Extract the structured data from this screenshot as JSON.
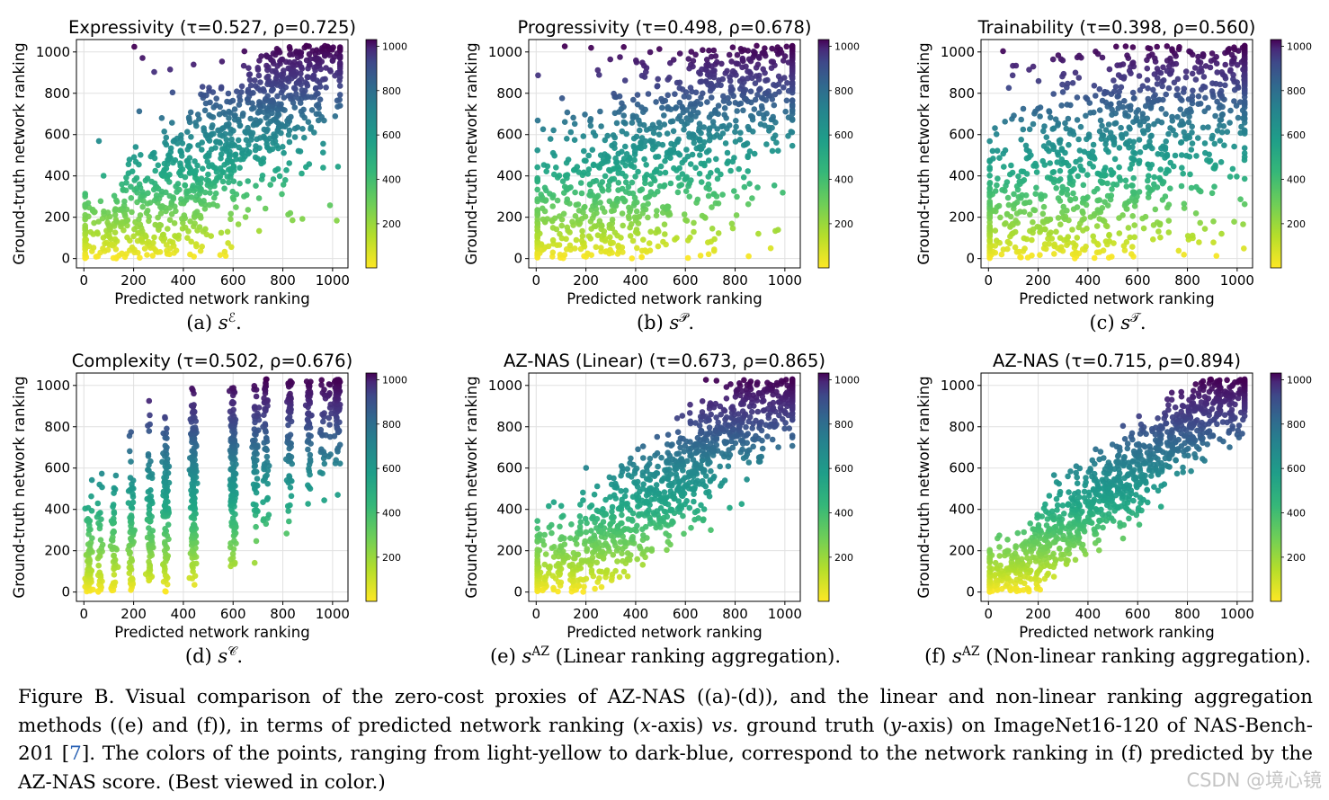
{
  "chart_data": [
    {
      "id": "a",
      "type": "scatter",
      "title": "Expressivity (τ=0.527, ρ=0.725)",
      "xlabel": "Predicted network ranking",
      "ylabel": "Ground-truth network ranking",
      "xlim": [
        -30,
        1062
      ],
      "ylim": [
        -45,
        1060
      ],
      "xticks": [
        0,
        200,
        400,
        600,
        800,
        1000
      ],
      "yticks": [
        0,
        200,
        400,
        600,
        800,
        1000
      ],
      "colorbar": {
        "ticks": [
          200,
          400,
          600,
          800,
          1000
        ],
        "range": [
          1,
          1030
        ],
        "colormap": "viridis_r"
      },
      "grid": true,
      "n_points": 1030,
      "tau": 0.527,
      "rho": 0.725,
      "subcaption": "(a) s^E."
    },
    {
      "id": "b",
      "type": "scatter",
      "title": "Progressivity (τ=0.498, ρ=0.678)",
      "xlabel": "Predicted network ranking",
      "ylabel": "Ground-truth network ranking",
      "xlim": [
        -30,
        1062
      ],
      "ylim": [
        -45,
        1060
      ],
      "xticks": [
        0,
        200,
        400,
        600,
        800,
        1000
      ],
      "yticks": [
        0,
        200,
        400,
        600,
        800,
        1000
      ],
      "colorbar": {
        "ticks": [
          200,
          400,
          600,
          800,
          1000
        ],
        "range": [
          1,
          1030
        ],
        "colormap": "viridis_r"
      },
      "grid": true,
      "n_points": 1030,
      "tau": 0.498,
      "rho": 0.678,
      "subcaption": "(b) s^P."
    },
    {
      "id": "c",
      "type": "scatter",
      "title": "Trainability (τ=0.398, ρ=0.560)",
      "xlabel": "Predicted network ranking",
      "ylabel": "Ground-truth network ranking",
      "xlim": [
        -30,
        1062
      ],
      "ylim": [
        -45,
        1060
      ],
      "xticks": [
        0,
        200,
        400,
        600,
        800,
        1000
      ],
      "yticks": [
        0,
        200,
        400,
        600,
        800,
        1000
      ],
      "colorbar": {
        "ticks": [
          200,
          400,
          600,
          800,
          1000
        ],
        "range": [
          1,
          1030
        ],
        "colormap": "viridis_r"
      },
      "grid": true,
      "n_points": 1030,
      "tau": 0.398,
      "rho": 0.56,
      "subcaption": "(c) s^T."
    },
    {
      "id": "d",
      "type": "scatter",
      "title": "Complexity (τ=0.502, ρ=0.676)",
      "xlabel": "Predicted network ranking",
      "ylabel": "Ground-truth network ranking",
      "xlim": [
        -30,
        1062
      ],
      "ylim": [
        -45,
        1060
      ],
      "xticks": [
        0,
        200,
        400,
        600,
        800,
        1000
      ],
      "yticks": [
        0,
        200,
        400,
        600,
        800,
        1000
      ],
      "colorbar": {
        "ticks": [
          200,
          400,
          600,
          800,
          1000
        ],
        "range": [
          1,
          1030
        ],
        "colormap": "viridis_r"
      },
      "grid": true,
      "n_points": 1030,
      "tau": 0.502,
      "rho": 0.676,
      "x_clusters": [
        20,
        65,
        120,
        190,
        265,
        330,
        440,
        600,
        690,
        730,
        825,
        905,
        960,
        990,
        1020
      ],
      "subcaption": "(d) s^C."
    },
    {
      "id": "e",
      "type": "scatter",
      "title": "AZ-NAS (Linear) (τ=0.673, ρ=0.865)",
      "xlabel": "Predicted network ranking",
      "ylabel": "Ground-truth network ranking",
      "xlim": [
        -30,
        1062
      ],
      "ylim": [
        -45,
        1060
      ],
      "xticks": [
        0,
        200,
        400,
        600,
        800,
        1000
      ],
      "yticks": [
        0,
        200,
        400,
        600,
        800,
        1000
      ],
      "colorbar": {
        "ticks": [
          200,
          400,
          600,
          800,
          1000
        ],
        "range": [
          1,
          1030
        ],
        "colormap": "viridis_r"
      },
      "grid": true,
      "n_points": 1030,
      "tau": 0.673,
      "rho": 0.865,
      "subcaption": "(e) s^AZ (Linear ranking aggregation)."
    },
    {
      "id": "f",
      "type": "scatter",
      "title": "AZ-NAS (τ=0.715, ρ=0.894)",
      "xlabel": "Predicted network ranking",
      "ylabel": "Ground-truth network ranking",
      "xlim": [
        -30,
        1062
      ],
      "ylim": [
        -45,
        1060
      ],
      "xticks": [
        0,
        200,
        400,
        600,
        800,
        1000
      ],
      "yticks": [
        0,
        200,
        400,
        600,
        800,
        1000
      ],
      "colorbar": {
        "ticks": [
          200,
          400,
          600,
          800,
          1000
        ],
        "range": [
          1,
          1030
        ],
        "colormap": "viridis_r"
      },
      "grid": true,
      "n_points": 1030,
      "tau": 0.715,
      "rho": 0.894,
      "subcaption": "(f) s^AZ (Non-linear ranking aggregation)."
    }
  ],
  "subcaptions": {
    "a": {
      "pre": "(a) ",
      "s": "s",
      "sup": "ℰ",
      "post": "."
    },
    "b": {
      "pre": "(b) ",
      "s": "s",
      "sup": "𝒫",
      "post": "."
    },
    "c": {
      "pre": "(c) ",
      "s": "s",
      "sup": "𝒯",
      "post": "."
    },
    "d": {
      "pre": "(d) ",
      "s": "s",
      "sup": "𝒞",
      "post": "."
    },
    "e": {
      "pre": "(e) ",
      "s": "s",
      "sup": "AZ",
      "post": " (Linear ranking aggregation)."
    },
    "f": {
      "pre": "(f) ",
      "s": "s",
      "sup": "AZ",
      "post": " (Non-linear ranking aggregation)."
    }
  },
  "caption": {
    "p1": "Figure B. Visual comparison of the zero-cost proxies of AZ-NAS ((a)-(d)), and the linear and non-linear ranking aggregation methods ((e) and (f)), in terms of predicted network ranking (",
    "xvar": "x",
    "p2": "-axis) ",
    "vs": "vs.",
    "p3": " ground truth (",
    "yvar": "y",
    "p4": "-axis) on ImageNet16-120 of NAS-Bench-201 [",
    "ref": "7",
    "p5": "]. The colors of the points, ranging from light-yellow to dark-blue, correspond to the network ranking in (f) predicted by the AZ-NAS score. (Best viewed in color.)"
  },
  "watermark": "CSDN @境心镜",
  "colors": {
    "grid": "#e0e0e0",
    "axis": "#000000",
    "link": "#2a62b4",
    "watermark": "#c4c4c4"
  }
}
